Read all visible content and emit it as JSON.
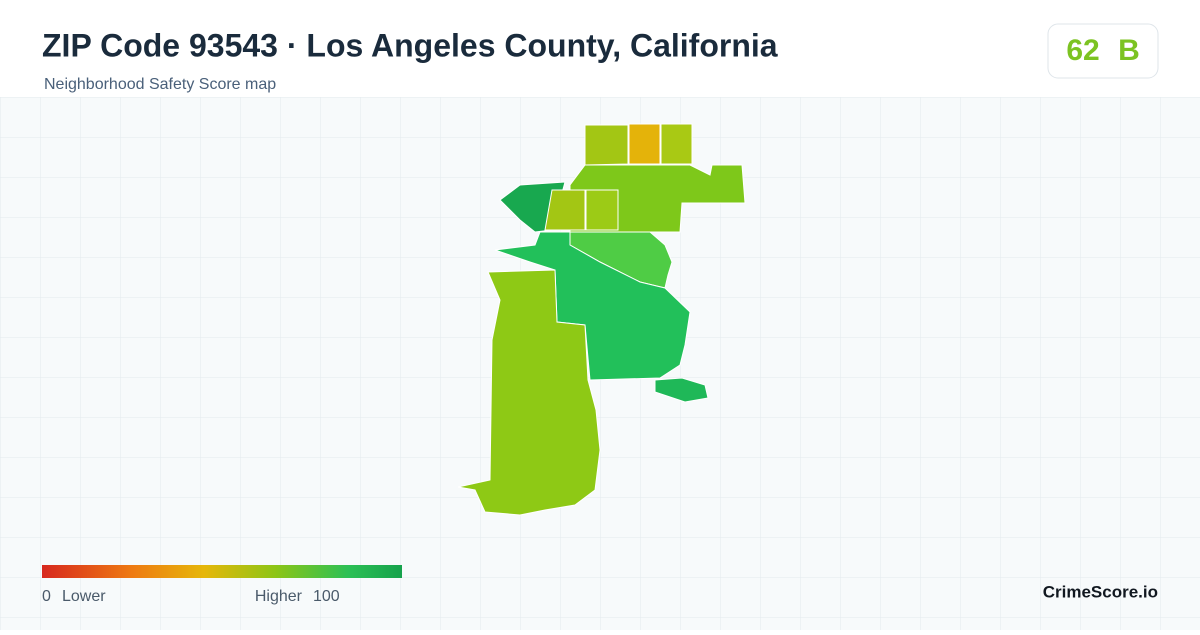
{
  "header": {
    "title": "ZIP Code 93543 · Los Angeles County, California",
    "subtitle": "Neighborhood Safety Score map"
  },
  "badge": {
    "score": 62,
    "grade": "B"
  },
  "legend": {
    "min": 0,
    "min_label": "Lower",
    "max_label": "Higher",
    "max": 100
  },
  "brand": "CrimeScore.io"
}
